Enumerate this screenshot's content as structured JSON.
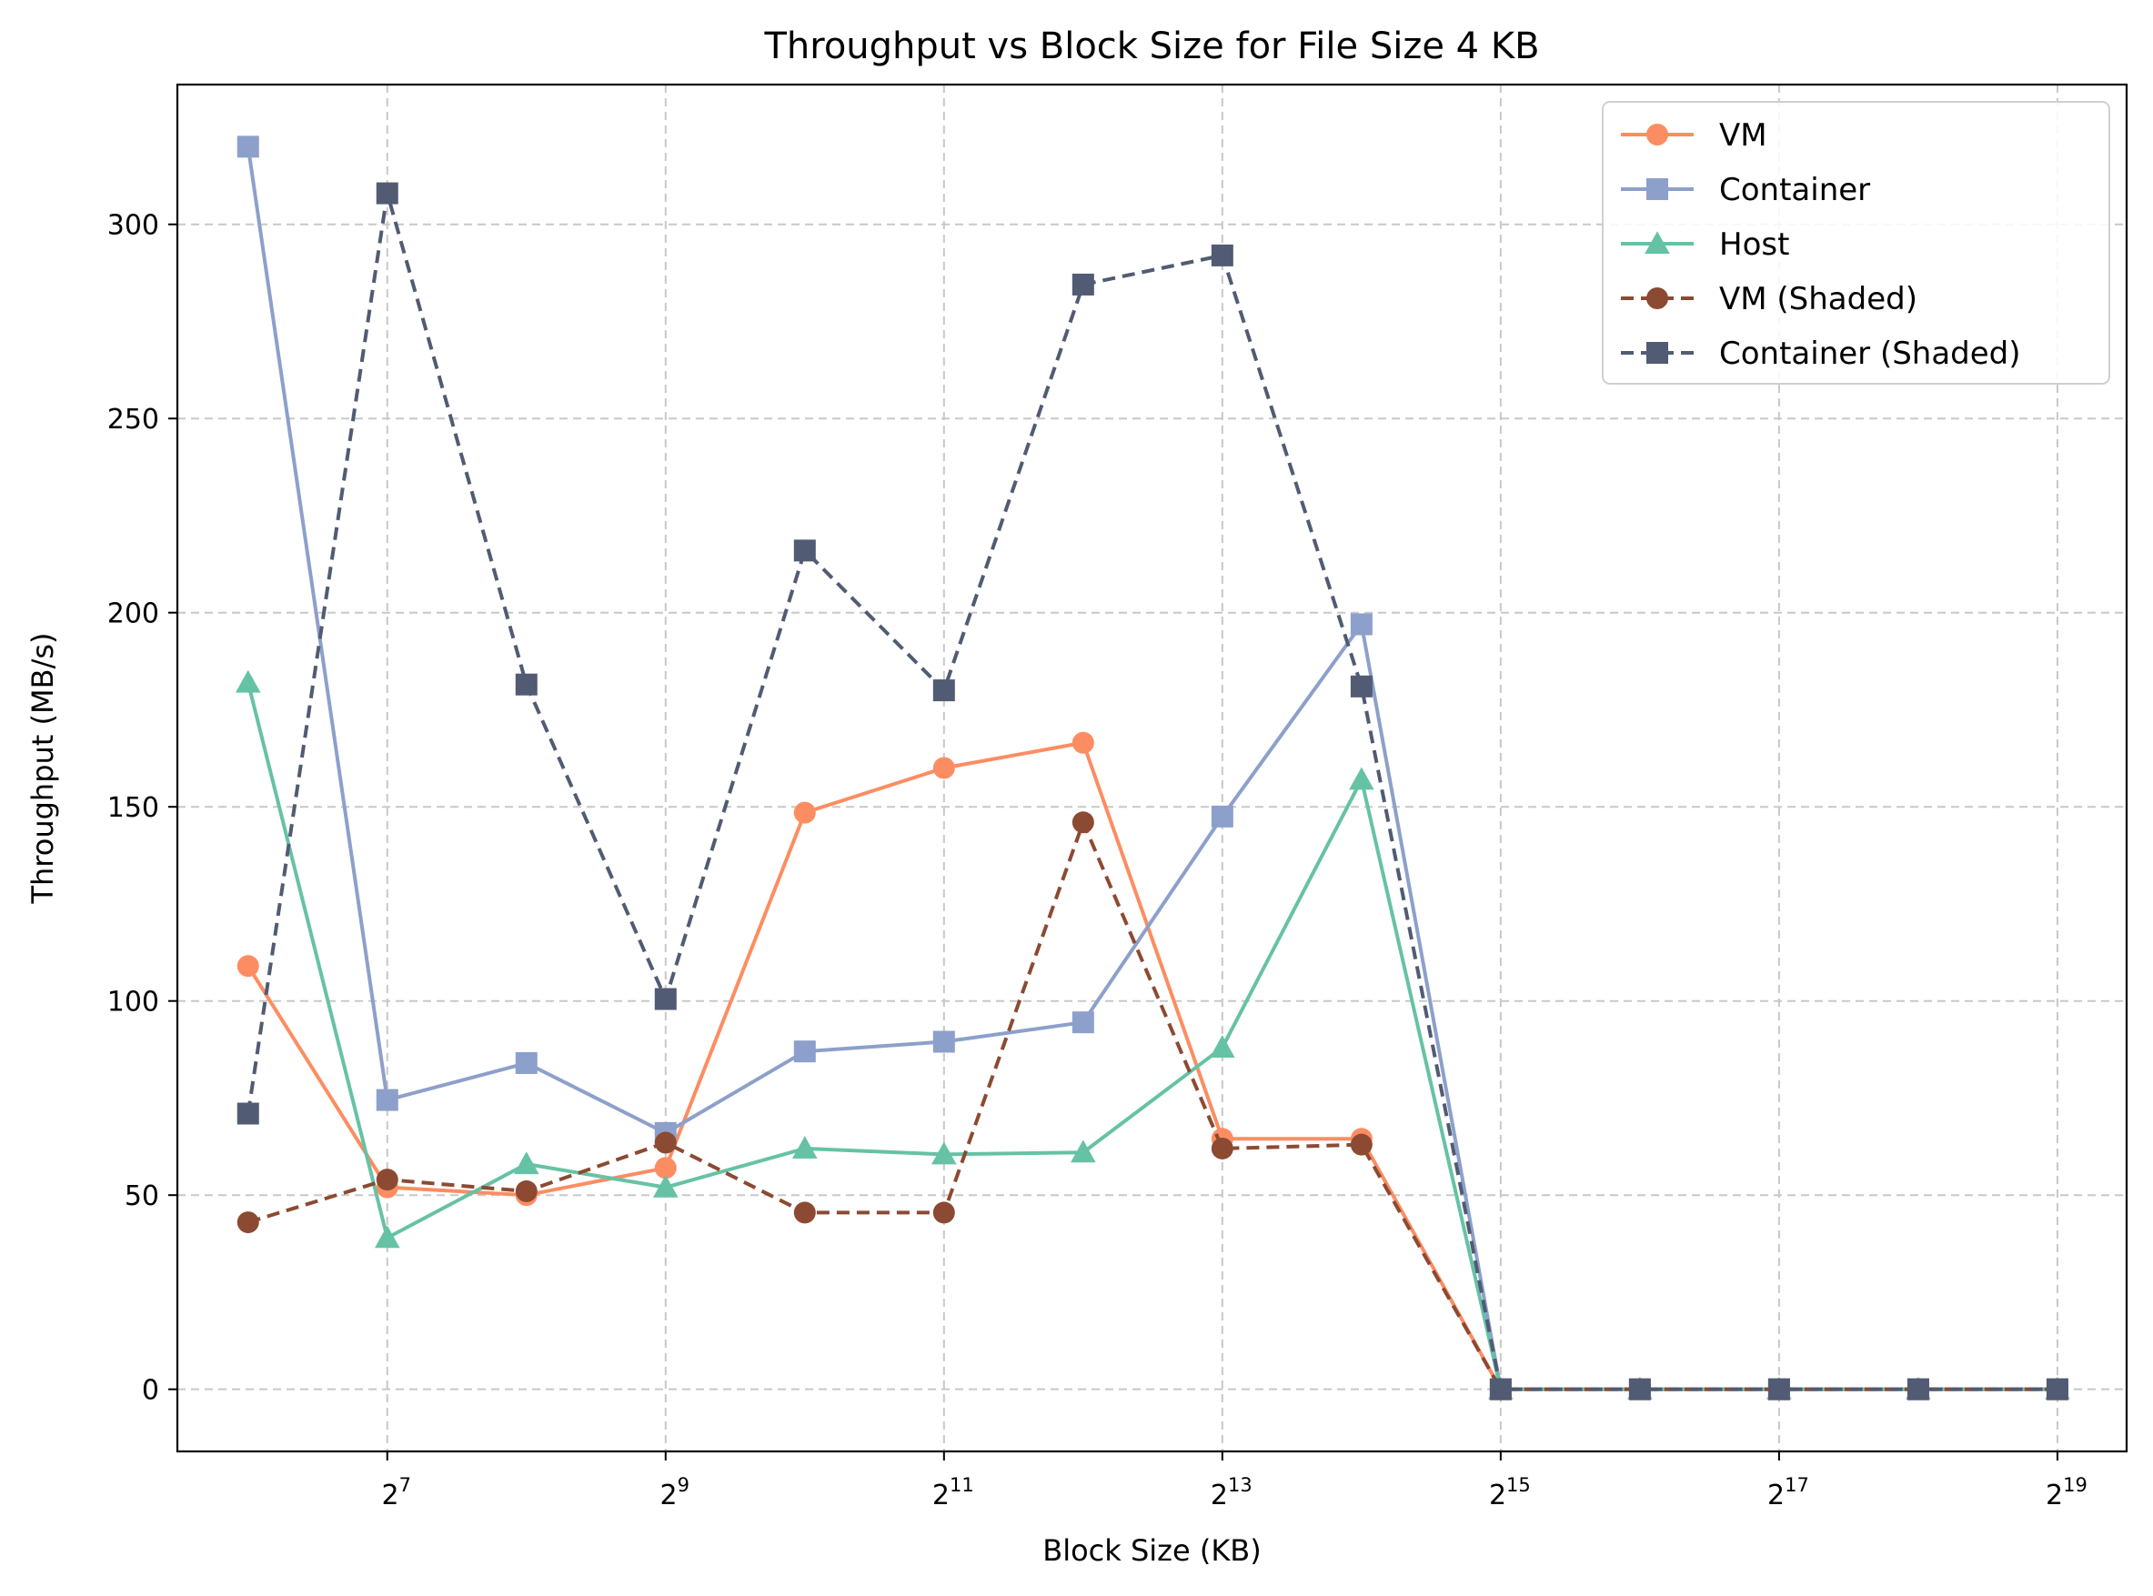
{
  "chart_data": {
    "type": "line",
    "title": "Throughput vs Block Size for File Size 4 KB",
    "xlabel": "Block Size (KB)",
    "ylabel": "Throughput (MB/s)",
    "x_scale": "log2",
    "x": [
      64,
      128,
      256,
      512,
      1024,
      2048,
      4096,
      8192,
      16384,
      32768,
      65536,
      131072,
      262144,
      524288
    ],
    "x_ticks": [
      128,
      512,
      2048,
      8192,
      32768,
      131072,
      524288
    ],
    "x_tick_labels": [
      {
        "base": "2",
        "exp": "7"
      },
      {
        "base": "2",
        "exp": "9"
      },
      {
        "base": "2",
        "exp": "11"
      },
      {
        "base": "2",
        "exp": "13"
      },
      {
        "base": "2",
        "exp": "15"
      },
      {
        "base": "2",
        "exp": "17"
      },
      {
        "base": "2",
        "exp": "19"
      }
    ],
    "xlim": [
      45,
      740000
    ],
    "ylim": [
      -16,
      336
    ],
    "y_ticks": [
      0,
      50,
      100,
      150,
      200,
      250,
      300
    ],
    "grid": true,
    "legend_position": "top-right",
    "series": [
      {
        "name": "VM",
        "color": "#fc8d62",
        "marker": "circle",
        "dashed": false,
        "values": [
          109,
          52,
          50,
          57,
          148.5,
          160,
          166.5,
          64.5,
          64.5,
          0,
          0,
          0,
          0,
          0
        ]
      },
      {
        "name": "Container",
        "color": "#8da0cb",
        "marker": "square",
        "dashed": false,
        "values": [
          320,
          74.5,
          84,
          66,
          87,
          89.5,
          94.5,
          147.5,
          197,
          0,
          0,
          0,
          0,
          0
        ]
      },
      {
        "name": "Host",
        "color": "#66c2a5",
        "marker": "triangle",
        "dashed": false,
        "values": [
          182,
          39,
          58,
          52,
          62,
          60.5,
          61,
          88,
          157,
          0,
          0,
          0,
          0,
          0
        ]
      },
      {
        "name": "VM (Shaded)",
        "color": "#8c4a32",
        "marker": "circle",
        "dashed": true,
        "values": [
          43,
          54,
          51,
          63.5,
          45.5,
          45.5,
          146,
          62,
          63,
          0,
          0,
          0,
          0,
          0
        ]
      },
      {
        "name": "Container (Shaded)",
        "color": "#515b73",
        "marker": "square",
        "dashed": true,
        "values": [
          71,
          308,
          181.5,
          100.5,
          216,
          180,
          284.5,
          292,
          181,
          0,
          0,
          0,
          0,
          0
        ]
      }
    ]
  }
}
